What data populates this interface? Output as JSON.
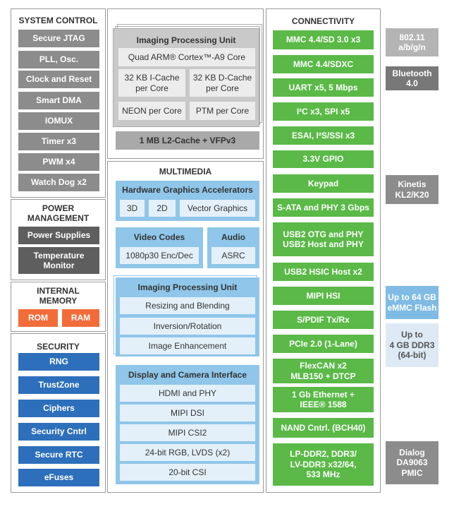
{
  "system_control": {
    "title": "SYSTEM CONTROL",
    "items": [
      "Secure JTAG",
      "PLL, Osc.",
      "Clock and Reset",
      "Smart DMA",
      "IOMUX",
      "Timer x3",
      "PWM x4",
      "Watch Dog x2"
    ]
  },
  "power_management": {
    "title": "POWER\nMANAGEMENT",
    "items": [
      "Power Supplies",
      "Temperature\nMonitor"
    ]
  },
  "internal_memory": {
    "title": "INTERNAL\nMEMORY",
    "items": [
      "ROM",
      "RAM"
    ]
  },
  "security": {
    "title": "SECURITY",
    "items": [
      "RNG",
      "TrustZone",
      "Ciphers",
      "Security Cntrl",
      "Secure RTC",
      "eFuses"
    ]
  },
  "cpu": {
    "title": "Imaging Processing Unit",
    "core": "Quad ARM® Cortex™-A9 Core",
    "items": [
      "32 KB I-Cache\nper Core",
      "32 KB D-Cache\nper Core",
      "NEON per Core",
      "PTM per Core"
    ],
    "l2": "1 MB L2-Cache + VFPv3"
  },
  "multimedia": {
    "title": "MULTIMEDIA",
    "graphics": {
      "title": "Hardware Graphics Accelerators",
      "items": [
        "3D",
        "2D",
        "Vector Graphics"
      ]
    },
    "video": {
      "title": "Video Codes",
      "items": [
        "1080p30 Enc/Dec"
      ]
    },
    "audio": {
      "title": "Audio",
      "items": [
        "ASRC"
      ]
    },
    "ipu": {
      "title": "Imaging Processing Unit",
      "items": [
        "Resizing and Blending",
        "Inversion/Rotation",
        "Image Enhancement"
      ]
    },
    "display": {
      "title": "Display and Camera Interface",
      "items": [
        "HDMI and PHY",
        "MIPI DSI",
        "MIPI CSI2",
        "24-bit RGB, LVDS (x2)",
        "20-bit CSI"
      ]
    }
  },
  "connectivity": {
    "title": "CONNECTIVITY",
    "items": [
      "MMC 4.4/SD 3.0 x3",
      "MMC 4.4/SDXC",
      "UART x5, 5 Mbps",
      "I²C x3, SPI x5",
      "ESAI, I²S/SSI x3",
      "3.3V GPIO",
      "Keypad",
      "S-ATA and PHY 3 Gbps",
      "USB2 OTG and PHY\nUSB2 Host and PHY",
      "USB2 HSIC Host x2",
      "MIPI HSI",
      "S/PDIF Tx/Rx",
      "PCIe 2.0 (1-Lane)",
      "FlexCAN x2\nMLB150 + DTCP",
      "1 Gb Ethernet +\nIEEE® 1588",
      "NAND Cntrl. (BCH40)",
      "LP-DDR2, DDR3/\nLV-DDR3 x32/64,\n533 MHz"
    ]
  },
  "external": {
    "items": [
      "802.11\na/b/g/n",
      "Bluetooth\n4.0",
      "Kinetis\nKL2/K20",
      "Up to 64 GB\neMMC Flash",
      "Up to\n4 GB DDR3\n(64-bit)",
      "Dialog\nDA9063\nPMIC"
    ]
  }
}
